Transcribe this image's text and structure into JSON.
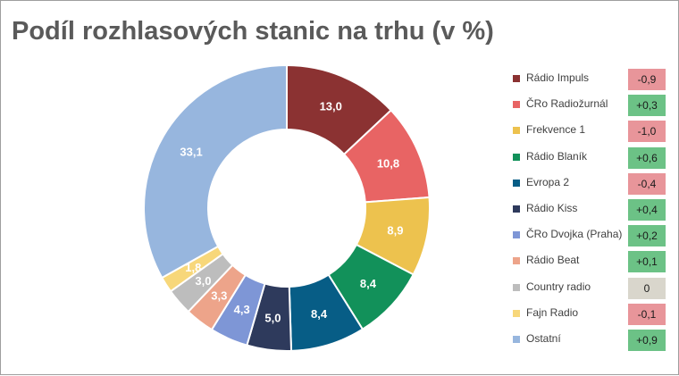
{
  "chart_data": {
    "type": "pie",
    "variant": "donut",
    "title": "Podíl rozhlasových stanic na trhu (v %)",
    "slices": [
      {
        "label": "Rádio Impuls",
        "value": 13.0,
        "value_text": "13,0",
        "color": "#8b3232",
        "label_color": "#ffffff",
        "change_text": "-0,9",
        "change_color": "#e8959a"
      },
      {
        "label": "ČRo Radiožurnál",
        "value": 10.8,
        "value_text": "10,8",
        "color": "#e86464",
        "label_color": "#ffffff",
        "change_text": "+0,3",
        "change_color": "#6cc286"
      },
      {
        "label": "Frekvence 1",
        "value": 8.9,
        "value_text": "8,9",
        "color": "#edc24e",
        "label_color": "#ffffff",
        "change_text": "-1,0",
        "change_color": "#e8959a"
      },
      {
        "label": "Rádio Blaník",
        "value": 8.4,
        "value_text": "8,4",
        "color": "#12915a",
        "label_color": "#ffffff",
        "change_text": "+0,6",
        "change_color": "#6cc286"
      },
      {
        "label": "Evropa 2",
        "value": 8.4,
        "value_text": "8,4",
        "color": "#075d86",
        "label_color": "#ffffff",
        "change_text": "-0,4",
        "change_color": "#e8959a"
      },
      {
        "label": "Rádio Kiss",
        "value": 5.0,
        "value_text": "5,0",
        "color": "#2e3a5c",
        "label_color": "#ffffff",
        "change_text": "+0,4",
        "change_color": "#6cc286"
      },
      {
        "label": "ČRo Dvojka (Praha)",
        "value": 4.3,
        "value_text": "4,3",
        "color": "#7e96d6",
        "label_color": "#ffffff",
        "change_text": "+0,2",
        "change_color": "#6cc286"
      },
      {
        "label": "Rádio Beat",
        "value": 3.3,
        "value_text": "3,3",
        "color": "#eda48a",
        "label_color": "#ffffff",
        "change_text": "+0,1",
        "change_color": "#6cc286"
      },
      {
        "label": "Country radio",
        "value": 3.0,
        "value_text": "3,0",
        "color": "#bdbdbd",
        "label_color": "#ffffff",
        "change_text": "0",
        "change_color": "#d9d6cc"
      },
      {
        "label": "Fajn Radio",
        "value": 1.8,
        "value_text": "1,8",
        "color": "#f7d77a",
        "label_color": "#ffffff",
        "change_text": "-0,1",
        "change_color": "#e8959a"
      },
      {
        "label": "Ostatní",
        "value": 33.1,
        "value_text": "33,1",
        "color": "#97b6de",
        "label_color": "#ffffff",
        "change_text": "+0,9",
        "change_color": "#6cc286"
      }
    ],
    "legend_position": "right"
  }
}
